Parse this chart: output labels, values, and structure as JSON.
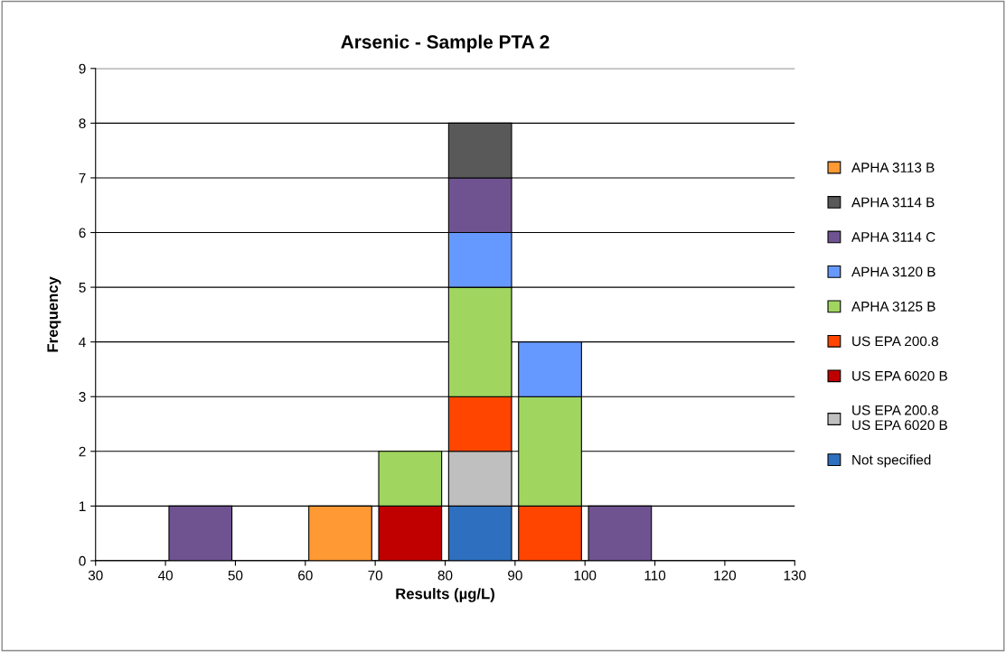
{
  "chart_data": {
    "type": "bar",
    "stacked": true,
    "title": "Arsenic - Sample PTA 2",
    "xlabel": "Results (µg/L)",
    "ylabel": "Frequency",
    "x": [
      45,
      65,
      75,
      85,
      95,
      105
    ],
    "series": [
      {
        "name": "Not specified",
        "color": "#2e6fbf",
        "values": [
          null,
          null,
          null,
          1,
          null,
          null
        ]
      },
      {
        "name": "US EPA 200.8\nUS EPA 6020 B",
        "color": "#bfbfbf",
        "values": [
          null,
          null,
          null,
          1,
          null,
          null
        ]
      },
      {
        "name": "US EPA 6020 B",
        "color": "#c00000",
        "values": [
          null,
          null,
          1,
          null,
          null,
          null
        ]
      },
      {
        "name": "US EPA 200.8",
        "color": "#ff4500",
        "values": [
          null,
          null,
          null,
          1,
          1,
          null
        ]
      },
      {
        "name": "APHA 3125 B",
        "color": "#a0d660",
        "values": [
          null,
          null,
          1,
          2,
          2,
          null
        ]
      },
      {
        "name": "APHA 3120 B",
        "color": "#6699ff",
        "values": [
          null,
          null,
          null,
          1,
          1,
          null
        ]
      },
      {
        "name": "APHA 3114 C",
        "color": "#6f5391",
        "values": [
          1,
          null,
          null,
          1,
          null,
          1
        ]
      },
      {
        "name": "APHA 3114 B",
        "color": "#595959",
        "values": [
          null,
          null,
          null,
          1,
          null,
          null
        ]
      },
      {
        "name": "APHA 3113 B",
        "color": "#ff9933",
        "values": [
          null,
          1,
          null,
          null,
          null,
          null
        ]
      }
    ],
    "xlim": [
      30,
      130
    ],
    "xticks": [
      30,
      40,
      50,
      60,
      70,
      80,
      90,
      100,
      110,
      120,
      130
    ],
    "ylim": [
      0,
      9
    ],
    "yticks": [
      0,
      1,
      2,
      3,
      4,
      5,
      6,
      7,
      8,
      9
    ],
    "grid": "y",
    "legend": "right"
  }
}
